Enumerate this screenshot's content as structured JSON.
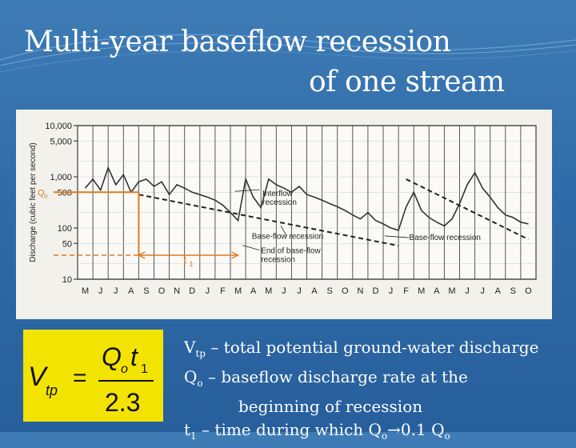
{
  "title": {
    "line1": "Multi-year baseflow recession",
    "line2": "of one stream"
  },
  "colors": {
    "background": "#2f6ba8",
    "formula_bg": "#f2e400",
    "qo_marker": "#e07a1f"
  },
  "chart_data": {
    "type": "line",
    "ylabel": "Discharge (cubic feet per second)",
    "y_scale": "log",
    "ylim": [
      10,
      10000
    ],
    "y_ticks": [
      "10,000",
      "5,000",
      "1,000",
      "500",
      "100",
      "50",
      "10"
    ],
    "y_tick_values": [
      10000,
      5000,
      1000,
      500,
      100,
      50,
      10
    ],
    "x_ticks": [
      "M",
      "J",
      "J",
      "A",
      "S",
      "O",
      "N",
      "D",
      "J",
      "F",
      "M",
      "A",
      "M",
      "J",
      "J",
      "A",
      "S",
      "O",
      "N",
      "D",
      "J",
      "F",
      "M",
      "A",
      "M",
      "J",
      "J",
      "A",
      "S",
      "O"
    ],
    "grid": true,
    "series": [
      {
        "x": [
          0,
          0.5,
          1,
          1.5,
          2,
          2.5,
          3,
          3.5,
          4,
          4.5,
          5,
          5.5,
          6,
          6.5,
          7,
          7.5,
          8,
          8.5,
          9,
          9.5,
          10,
          10.5,
          11,
          11.5,
          12,
          12.5,
          13,
          13.5,
          14,
          14.5,
          15,
          15.5,
          16,
          16.5,
          17,
          17.5,
          18,
          18.5,
          19,
          19.5,
          20,
          20.5,
          21,
          21.5,
          22,
          22.5,
          23,
          23.5,
          24,
          24.5,
          25,
          25.5,
          26,
          26.5,
          27,
          27.5,
          28,
          28.5,
          29
        ],
        "values": [
          600,
          900,
          550,
          1500,
          700,
          1100,
          500,
          800,
          900,
          650,
          800,
          450,
          700,
          600,
          500,
          450,
          400,
          350,
          280,
          200,
          140,
          900,
          400,
          250,
          900,
          700,
          600,
          500,
          650,
          450,
          400,
          350,
          300,
          260,
          220,
          180,
          150,
          200,
          140,
          120,
          100,
          90,
          260,
          500,
          220,
          160,
          130,
          110,
          150,
          300,
          700,
          1200,
          600,
          400,
          250,
          180,
          160,
          130,
          120
        ],
        "color": "#333333"
      }
    ],
    "recession_lines": [
      {
        "from": [
          3.5,
          450
        ],
        "to": [
          20.5,
          45
        ]
      },
      {
        "from": [
          21,
          900
        ],
        "to": [
          29,
          60
        ]
      }
    ],
    "annotations": [
      "Interflow recession",
      "Base-flow recession",
      "Base-flow recession",
      "End of base-flow recession"
    ],
    "qo_label": "Q",
    "qo_sub": "o",
    "qo_value": 500,
    "t1_label": "t",
    "t1_sub": "1",
    "t1_range": [
      3.5,
      10
    ]
  },
  "formula": {
    "lhs": "V",
    "lhs_sub": "tp",
    "equals": "=",
    "numerator_q": "Q",
    "numerator_q_sub": "o",
    "numerator_t": "t",
    "numerator_t_sub": "1",
    "denominator": "2.3"
  },
  "definitions": {
    "vtp_sym": "V",
    "vtp_sub": "tp",
    "vtp_text": " – total potential ground-water discharge",
    "qo_sym": "Q",
    "qo_sub": "o",
    "qo_text": " – baseflow discharge rate at the",
    "qo_text2": "beginning of recession",
    "t1_sym": "t",
    "t1_sub": "1",
    "t1_text": " – time during which Q",
    "t1_sub2": "o",
    "t1_arrow": "→",
    "t1_text2": "0.1 Q",
    "t1_sub3": "o"
  }
}
